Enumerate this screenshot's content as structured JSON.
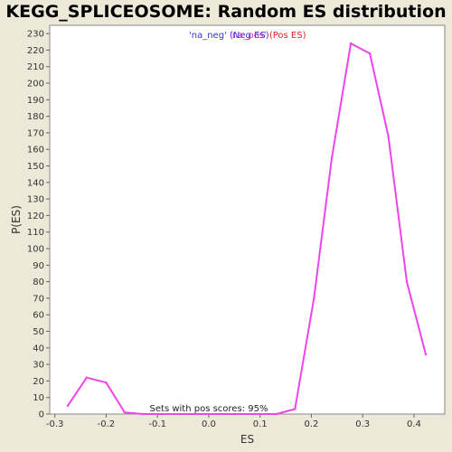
{
  "chart_data": {
    "type": "line",
    "title": "KEGG_SPLICEOSOME: Random ES distribution",
    "xlabel": "ES",
    "ylabel": "P(ES)",
    "xlim": [
      -0.31,
      0.46
    ],
    "ylim": [
      0,
      235
    ],
    "x_ticks": [
      "-0.3",
      "-0.2",
      "-0.1",
      "0.0",
      "0.1",
      "0.2",
      "0.3",
      "0.4"
    ],
    "y_ticks": [
      "0",
      "10",
      "20",
      "30",
      "40",
      "50",
      "60",
      "70",
      "80",
      "90",
      "100",
      "110",
      "120",
      "130",
      "140",
      "150",
      "160",
      "170",
      "180",
      "190",
      "200",
      "210",
      "220",
      "230"
    ],
    "legend": [
      {
        "label": "'na_neg'",
        "color": "#3333cc"
      },
      {
        "label": "(Neg ES)",
        "color": "#3333cc"
      },
      {
        "label": "'na_pos'",
        "color": "#cc33cc"
      },
      {
        "label": "(Pos ES)",
        "color": "#dd2222"
      }
    ],
    "annotation": "Sets with pos scores: 95%",
    "series": [
      {
        "color": "#ee44ee",
        "x": [
          -0.275,
          -0.238,
          -0.2,
          -0.164,
          -0.128,
          -0.092,
          -0.056,
          -0.02,
          0.016,
          0.052,
          0.088,
          0.132,
          0.168,
          0.205,
          0.24,
          0.277,
          0.314,
          0.35,
          0.386,
          0.423
        ],
        "values": [
          5,
          22,
          19,
          1,
          0,
          0,
          0,
          0,
          0,
          0,
          0,
          0,
          3,
          70,
          155,
          224,
          218,
          168,
          80,
          36
        ]
      }
    ]
  }
}
